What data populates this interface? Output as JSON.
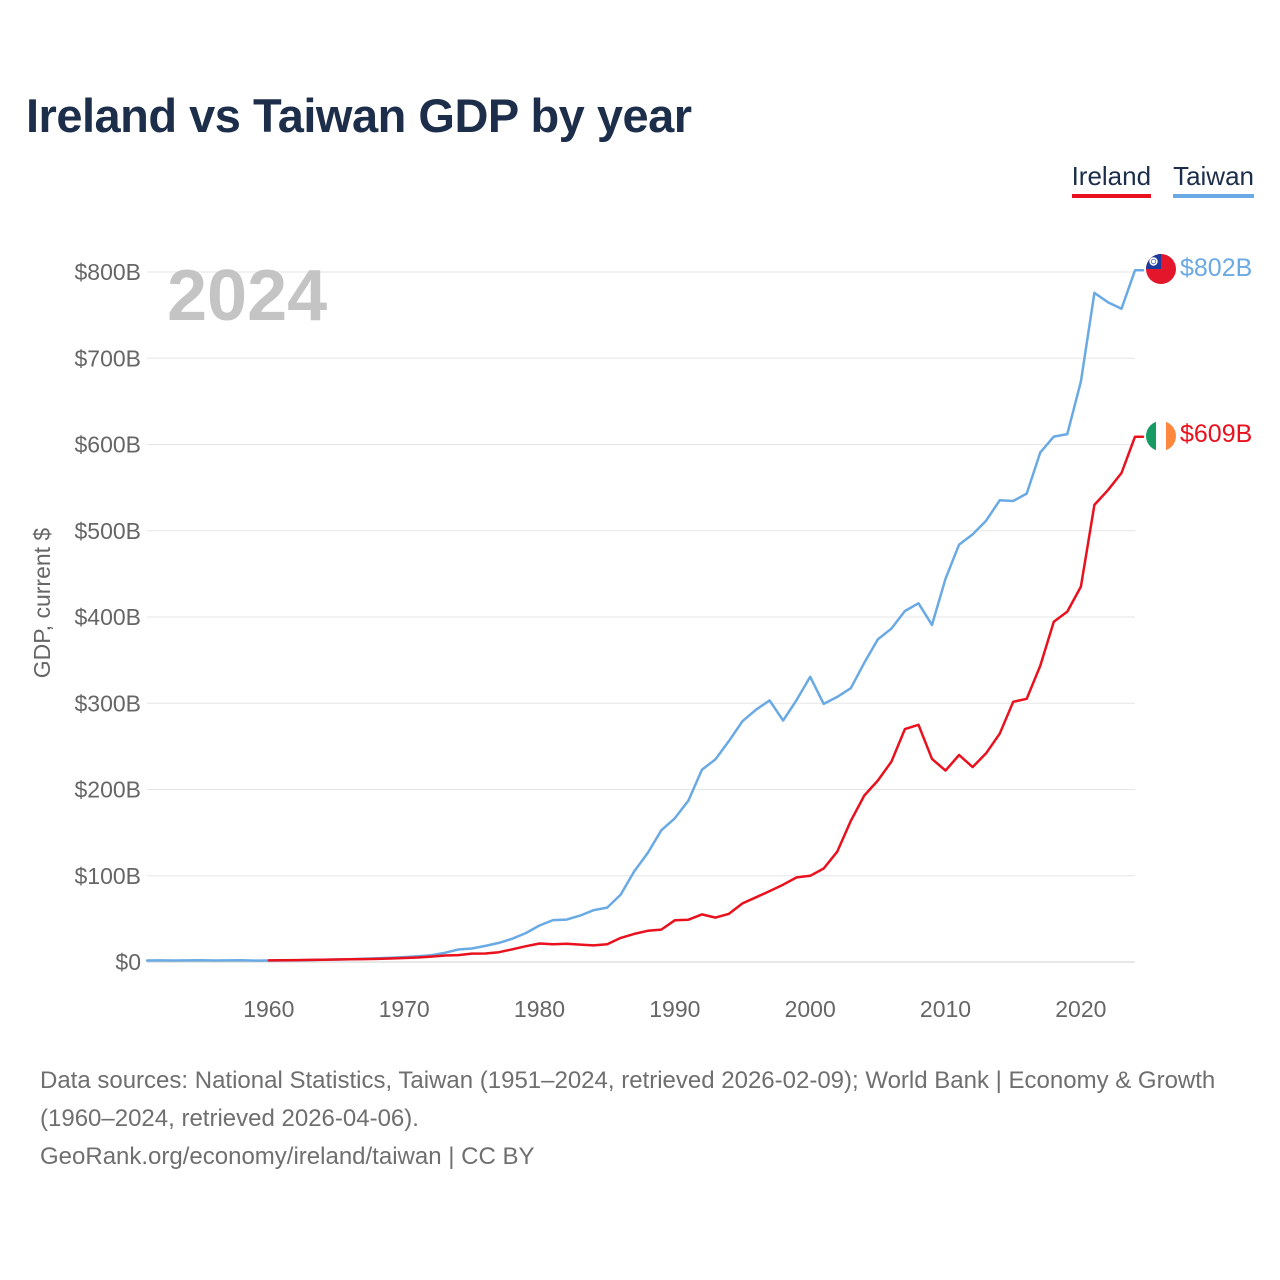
{
  "title": "Ireland vs Taiwan GDP by year",
  "legend": {
    "ireland": "Ireland",
    "taiwan": "Taiwan"
  },
  "colors": {
    "ireland": "#e8111d",
    "taiwan": "#6aaae4",
    "title": "#1c2e4a"
  },
  "year_label": "2024",
  "end_labels": {
    "ireland": "$609B",
    "taiwan": "$802B"
  },
  "flags": {
    "ireland": "ireland-flag-icon",
    "taiwan": "taiwan-flag-icon"
  },
  "footer": {
    "sources": "Data sources: National Statistics, Taiwan (1951–2024, retrieved 2026-02-09); World Bank | Economy & Growth (1960–2024, retrieved 2026-04-06).",
    "attribution": "GeoRank.org/economy/ireland/taiwan | CC BY"
  },
  "chart_data": {
    "type": "line",
    "title": "Ireland vs Taiwan GDP by year",
    "xlabel": "",
    "ylabel": "GDP, current $",
    "xlim": [
      1951,
      2024
    ],
    "ylim": [
      0,
      800
    ],
    "x_ticks": [
      1960,
      1970,
      1980,
      1990,
      2000,
      2010,
      2020
    ],
    "y_ticks": [
      0,
      100,
      200,
      300,
      400,
      500,
      600,
      700,
      800
    ],
    "y_tick_labels": [
      "$0",
      "$100B",
      "$200B",
      "$300B",
      "$400B",
      "$500B",
      "$600B",
      "$700B",
      "$800B"
    ],
    "unit": "billion USD",
    "series": [
      {
        "name": "Taiwan",
        "x_start": 1951,
        "values": [
          1.7,
          1.8,
          1.7,
          1.9,
          2.1,
          1.7,
          1.9,
          2.0,
          1.6,
          1.7,
          1.8,
          2.0,
          2.2,
          2.6,
          2.9,
          3.2,
          3.7,
          4.3,
          4.9,
          5.7,
          6.6,
          7.9,
          10.7,
          14.5,
          15.6,
          18.7,
          22.1,
          27.0,
          33.6,
          42.3,
          48.6,
          49.2,
          53.8,
          60.1,
          63.1,
          78.2,
          105.1,
          126.5,
          152.7,
          166.6,
          187.1,
          222.9,
          234.9,
          256.3,
          279.2,
          292.5,
          303.3,
          280.0,
          303.8,
          330.7,
          299.3,
          307.4,
          317.4,
          346.9,
          374.0,
          386.5,
          406.9,
          415.9,
          390.8,
          444.3,
          483.9,
          495.8,
          511.6,
          535.3,
          534.5,
          543.1,
          590.8,
          609.2,
          612.0,
          673.2,
          775.8,
          765.0,
          757.5,
          802.0
        ]
      },
      {
        "name": "Ireland",
        "x_start": 1960,
        "values": [
          1.9,
          2.0,
          2.2,
          2.4,
          2.7,
          2.9,
          3.1,
          3.4,
          3.6,
          4.1,
          4.6,
          5.2,
          6.3,
          7.5,
          8.0,
          9.7,
          9.8,
          11.4,
          14.7,
          18.3,
          21.5,
          20.6,
          21.1,
          20.2,
          19.3,
          20.6,
          28.0,
          32.6,
          36.2,
          37.6,
          48.4,
          49.1,
          55.2,
          51.5,
          55.9,
          67.9,
          75.0,
          82.2,
          89.6,
          98.1,
          99.9,
          108.4,
          127.9,
          163.6,
          193.0,
          210.3,
          232.2,
          270.0,
          275.0,
          235.5,
          221.9,
          240.0,
          226.0,
          242.0,
          264.7,
          301.7,
          305.2,
          343.6,
          394.6,
          406.3,
          435.2,
          530.0,
          547.0,
          567.0,
          609.0
        ]
      }
    ]
  }
}
